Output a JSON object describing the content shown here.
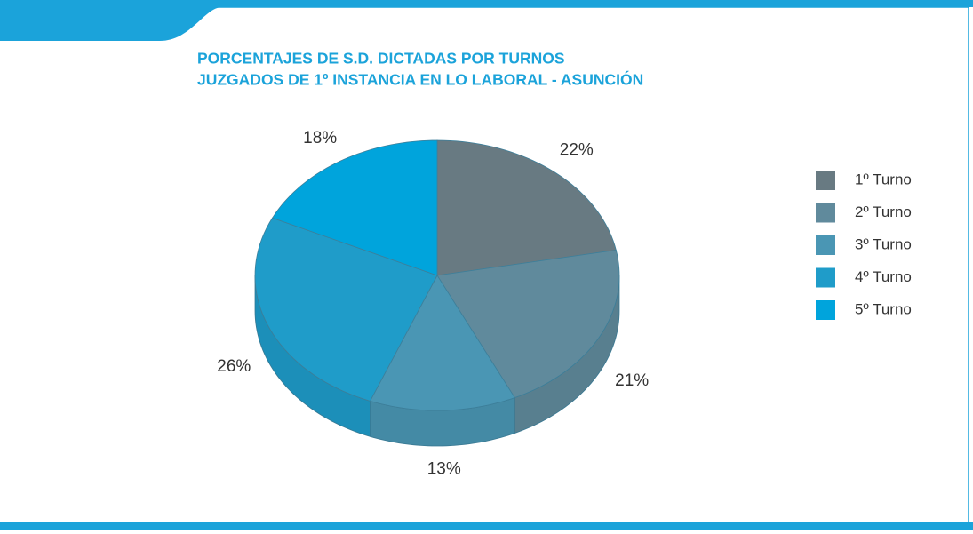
{
  "chart_data": {
    "type": "pie",
    "title": [
      "PORCENTAJES DE S.D. DICTADAS POR TURNOS",
      "JUZGADOS DE 1º INSTANCIA EN LO LABORAL - ASUNCIÓN"
    ],
    "categories": [
      "1º Turno",
      "2º Turno",
      "3º Turno",
      "4º Turno",
      "5º Turno"
    ],
    "values": [
      22,
      21,
      13,
      26,
      18
    ],
    "value_labels": [
      "22%",
      "21%",
      "13%",
      "26%",
      "18%"
    ],
    "colors": [
      "#687a82",
      "#608a9c",
      "#4a96b4",
      "#1f9cc9",
      "#00a4dc"
    ],
    "legend": "right"
  }
}
